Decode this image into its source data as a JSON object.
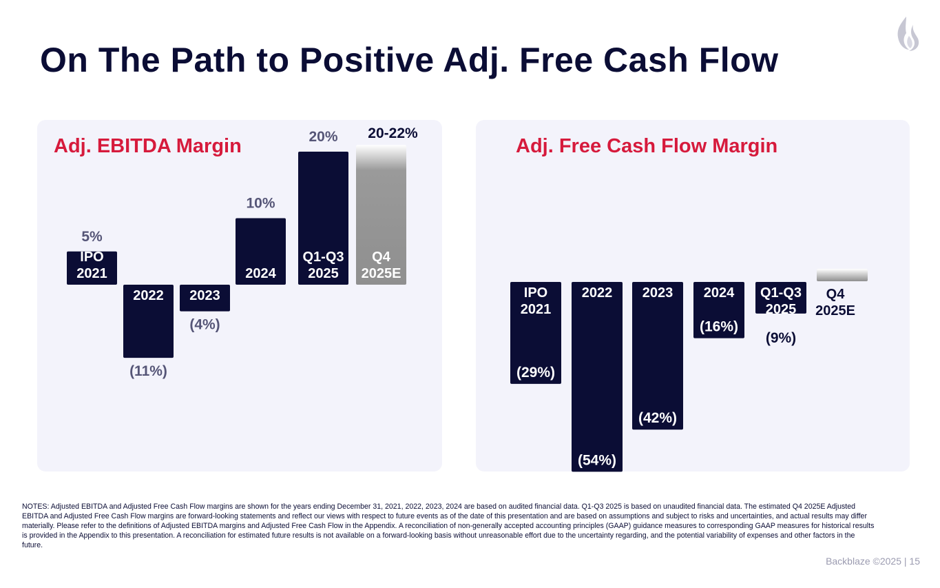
{
  "title": "On The Path to Positive Adj. Free Cash Flow",
  "colors": {
    "navy": "#0b0d35",
    "title_red": "#d61a3c",
    "label_gray": "#555577",
    "panel_bg": "#f3f3fb",
    "estimate_gray": "#8f8f8f"
  },
  "logo_icon": "flame-icon",
  "chart_data": [
    {
      "type": "bar",
      "title": "Adj. EBITDA Margin",
      "categories": [
        "IPO 2021",
        "2022",
        "2023",
        "2024",
        "Q1-Q3 2025",
        "Q4 2025E"
      ],
      "bar_labels": [
        [
          "IPO",
          "2021"
        ],
        [
          "2022"
        ],
        [
          "2023"
        ],
        [
          "2024"
        ],
        [
          "Q1-Q3",
          "2025"
        ],
        [
          "Q4",
          "2025E"
        ]
      ],
      "values": [
        5,
        -11,
        -4,
        10,
        20,
        21
      ],
      "value_labels": [
        "5%",
        "(11%)",
        "(4%)",
        "10%",
        "20%",
        "20-22%"
      ],
      "estimate": [
        false,
        false,
        false,
        false,
        false,
        true
      ],
      "ylabel": "",
      "xlabel": "",
      "grid": false
    },
    {
      "type": "bar",
      "title": "Adj. Free Cash Flow Margin",
      "categories": [
        "IPO 2021",
        "2022",
        "2023",
        "2024",
        "Q1-Q3 2025",
        "Q4 2025E"
      ],
      "bar_labels": [
        [
          "IPO",
          "2021"
        ],
        [
          "2022"
        ],
        [
          "2023"
        ],
        [
          "2024"
        ],
        [
          "Q1-Q3",
          "2025"
        ],
        [
          "Q4",
          "2025E"
        ]
      ],
      "values": [
        -29,
        -54,
        -42,
        -16,
        -9,
        2
      ],
      "value_labels": [
        "(29%)",
        "(54%)",
        "(42%)",
        "(16%)",
        "(9%)",
        ""
      ],
      "estimate": [
        false,
        false,
        false,
        false,
        false,
        true
      ],
      "ylabel": "",
      "xlabel": "",
      "grid": false
    }
  ],
  "notes": "NOTES: Adjusted EBITDA and Adjusted Free Cash Flow margins are shown for the years ending December 31, 2021, 2022, 2023, 2024 are based on audited financial data. Q1-Q3 2025 is based on unaudited financial data.  The estimated Q4 2025E Adjusted EBITDA and Adjusted Free Cash Flow margins are forward-looking statements and reflect our views with respect to future events as of the date of this presentation and are based on assumptions and subject to risks and uncertainties, and actual results may differ materially.  Please refer to the definitions of Adjusted EBITDA margins and Adjusted Free Cash Flow in the Appendix.  A reconciliation of non-generally accepted accounting principles (GAAP) guidance measures to corresponding GAAP measures for historical results is provided in the Appendix to this presentation.  A reconciliation for estimated future results is not available on a forward-looking basis without unreasonable effort due to the uncertainty regarding, and the potential variability of expenses and other factors in the future.",
  "footer": "Backblaze ©2025  |  15"
}
